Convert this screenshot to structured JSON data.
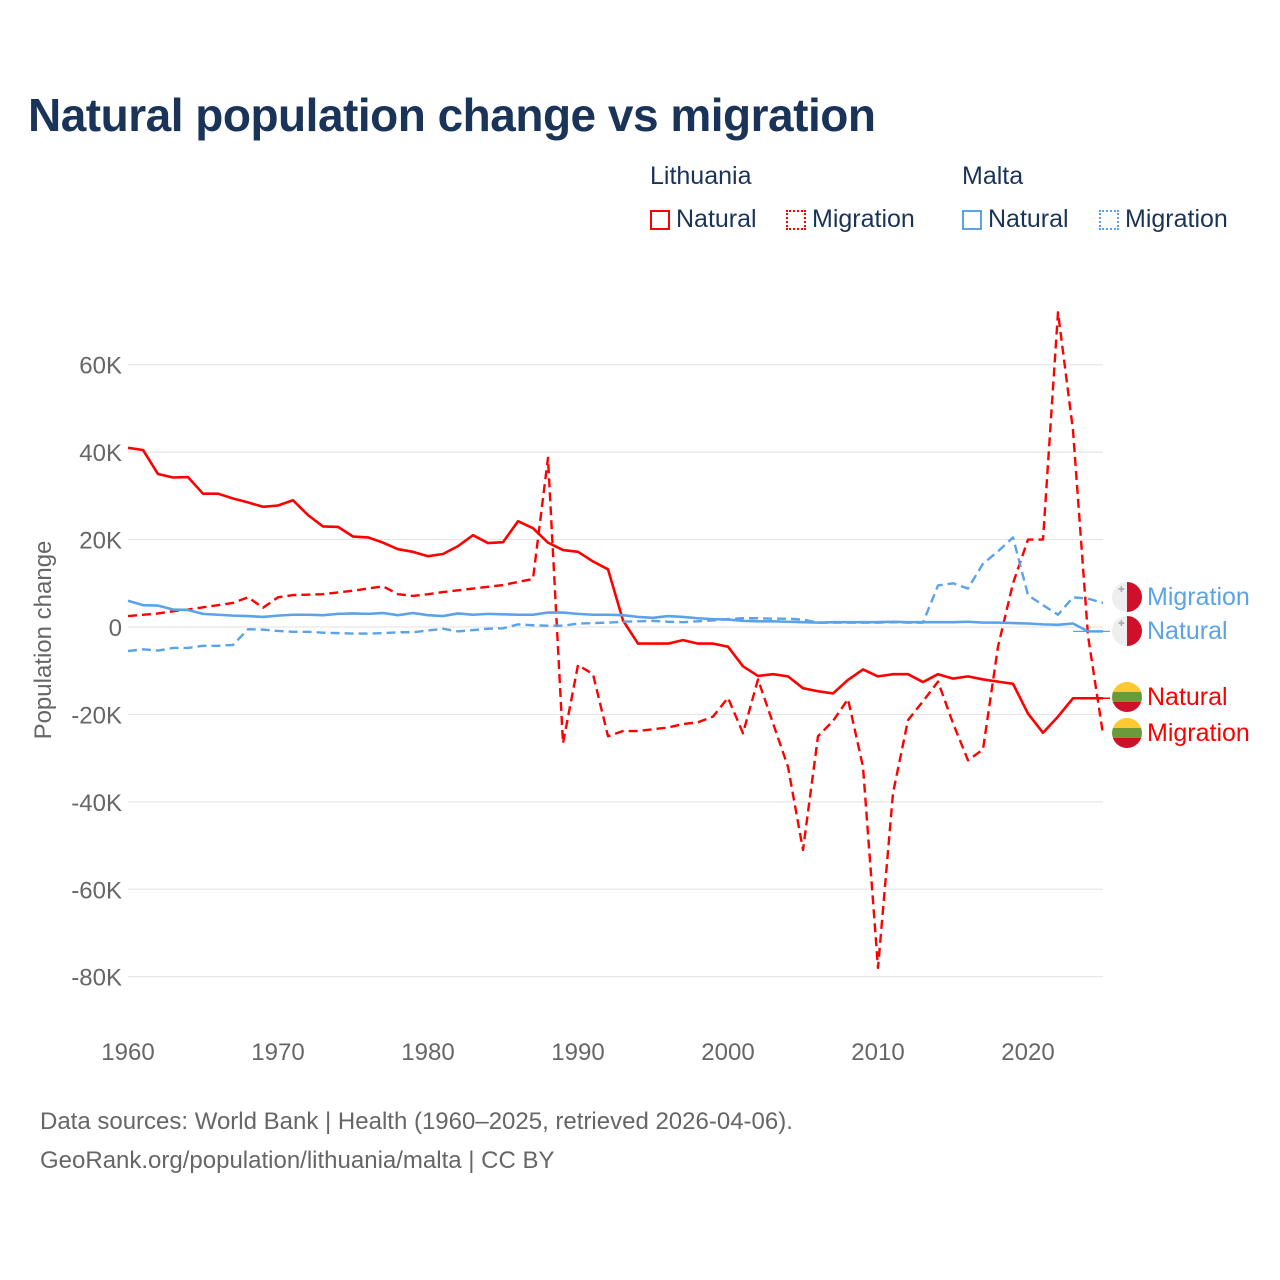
{
  "chart_data": {
    "type": "line",
    "title": "Natural population change vs migration",
    "xlabel": "",
    "ylabel": "Population change",
    "xlim": [
      1960,
      2025
    ],
    "ylim": [
      -90000,
      72000
    ],
    "x_ticks": [
      1960,
      1970,
      1980,
      1990,
      2000,
      2010,
      2020
    ],
    "x_tick_labels": [
      "1960",
      "1970",
      "1980",
      "1990",
      "2000",
      "2010",
      "2020"
    ],
    "y_ticks": [
      60000,
      40000,
      20000,
      0,
      -20000,
      -40000,
      -60000,
      -80000
    ],
    "y_tick_labels": [
      "60K",
      "40K",
      "20K",
      "0",
      "-20K",
      "-40K",
      "-60K",
      "-80K"
    ],
    "grid": true,
    "legend_placement": "top-right",
    "legend_groups": [
      {
        "name": "Lithuania",
        "items": [
          "Natural",
          "Migration"
        ]
      },
      {
        "name": "Malta",
        "items": [
          "Natural",
          "Migration"
        ]
      }
    ],
    "start_year": 1960,
    "series": [
      {
        "name": "Natural",
        "country": "Lithuania",
        "color": "#ff0000",
        "dash": false,
        "values": [
          41000,
          40500,
          35000,
          34200,
          34300,
          30500,
          30500,
          29400,
          28500,
          27500,
          27800,
          29000,
          25600,
          23000,
          22900,
          20700,
          20500,
          19300,
          17800,
          17200,
          16200,
          16700,
          18500,
          21000,
          19200,
          19400,
          24200,
          22600,
          19300,
          17600,
          17200,
          15000,
          13200,
          1500,
          -3800,
          -3800,
          -3800,
          -3000,
          -3800,
          -3800,
          -4500,
          -9000,
          -11200,
          -10800,
          -11300,
          -14000,
          -14700,
          -15200,
          -12100,
          -9700,
          -11300,
          -10800,
          -10800,
          -12600,
          -10800,
          -11800,
          -11300,
          -12000,
          -12500,
          -13000,
          -19800,
          -24200,
          -20500,
          -16300,
          -16300,
          -16300
        ]
      },
      {
        "name": "Migration",
        "country": "Lithuania",
        "color": "#ff0000",
        "dash": true,
        "values": [
          2500,
          2800,
          3100,
          3600,
          4000,
          4500,
          5000,
          5500,
          6800,
          4400,
          6800,
          7300,
          7400,
          7500,
          7900,
          8300,
          8800,
          9300,
          7500,
          7100,
          7500,
          8000,
          8400,
          8800,
          9200,
          9600,
          10300,
          11000,
          38700,
          -26600,
          -8700,
          -10800,
          -25000,
          -23800,
          -23800,
          -23400,
          -23000,
          -22200,
          -21800,
          -20500,
          -16200,
          -24300,
          -12000,
          -22000,
          -32000,
          -51000,
          -25000,
          -21500,
          -16500,
          -32000,
          -78000,
          -38000,
          -21300,
          -17000,
          -12500,
          -22000,
          -30500,
          -28000,
          -4500,
          10000,
          20000,
          20000,
          72000,
          45000,
          -2000,
          -24500
        ]
      },
      {
        "name": "Natural",
        "country": "Malta",
        "color": "#5ba3e8",
        "dash": false,
        "values": [
          6000,
          5000,
          4900,
          4000,
          3900,
          3000,
          2800,
          2600,
          2500,
          2300,
          2600,
          2800,
          2800,
          2700,
          3000,
          3100,
          3000,
          3200,
          2700,
          3200,
          2700,
          2500,
          3100,
          2800,
          3000,
          2900,
          2800,
          2800,
          3300,
          3300,
          3000,
          2800,
          2800,
          2700,
          2300,
          2100,
          2500,
          2300,
          2000,
          1800,
          1700,
          1400,
          1300,
          1300,
          1200,
          1100,
          1000,
          1100,
          1100,
          1100,
          1100,
          1200,
          1100,
          1100,
          1100,
          1100,
          1200,
          1000,
          1000,
          900,
          800,
          600,
          500,
          800,
          -1000,
          -1000
        ]
      },
      {
        "name": "Migration",
        "country": "Malta",
        "color": "#5ba3e8",
        "dash": true,
        "values": [
          -5500,
          -5100,
          -5400,
          -4800,
          -4800,
          -4300,
          -4300,
          -4100,
          -500,
          -600,
          -900,
          -1100,
          -1100,
          -1300,
          -1400,
          -1500,
          -1500,
          -1400,
          -1200,
          -1200,
          -800,
          -400,
          -1000,
          -700,
          -400,
          -300,
          600,
          400,
          300,
          300,
          800,
          900,
          1000,
          1200,
          1300,
          1400,
          1200,
          1100,
          1300,
          1500,
          1800,
          2000,
          2000,
          1900,
          1900,
          1700,
          1000,
          1000,
          1000,
          1000,
          1000,
          1100,
          1000,
          1000,
          9500,
          10000,
          8800,
          14500,
          17300,
          20500,
          7300,
          5000,
          2800,
          6800,
          6500,
          5500
        ]
      }
    ],
    "end_labels": [
      {
        "text": "Migration",
        "country": "Malta",
        "color": "#5ba3e8"
      },
      {
        "text": "Natural",
        "country": "Malta",
        "color": "#5ba3e8"
      },
      {
        "text": "Natural",
        "country": "Lithuania",
        "color": "#ff0000"
      },
      {
        "text": "Migration",
        "country": "Lithuania",
        "color": "#ff0000"
      }
    ]
  },
  "legend": {
    "lithuania": "Lithuania",
    "malta": "Malta",
    "lt_natural": "Natural",
    "lt_migration": "Migration",
    "mt_natural": "Natural",
    "mt_migration": "Migration"
  },
  "footer": {
    "line1": "Data sources: World Bank | Health (1960–2025, retrieved 2026-04-06).",
    "line2": "GeoRank.org/population/lithuania/malta | CC BY"
  }
}
